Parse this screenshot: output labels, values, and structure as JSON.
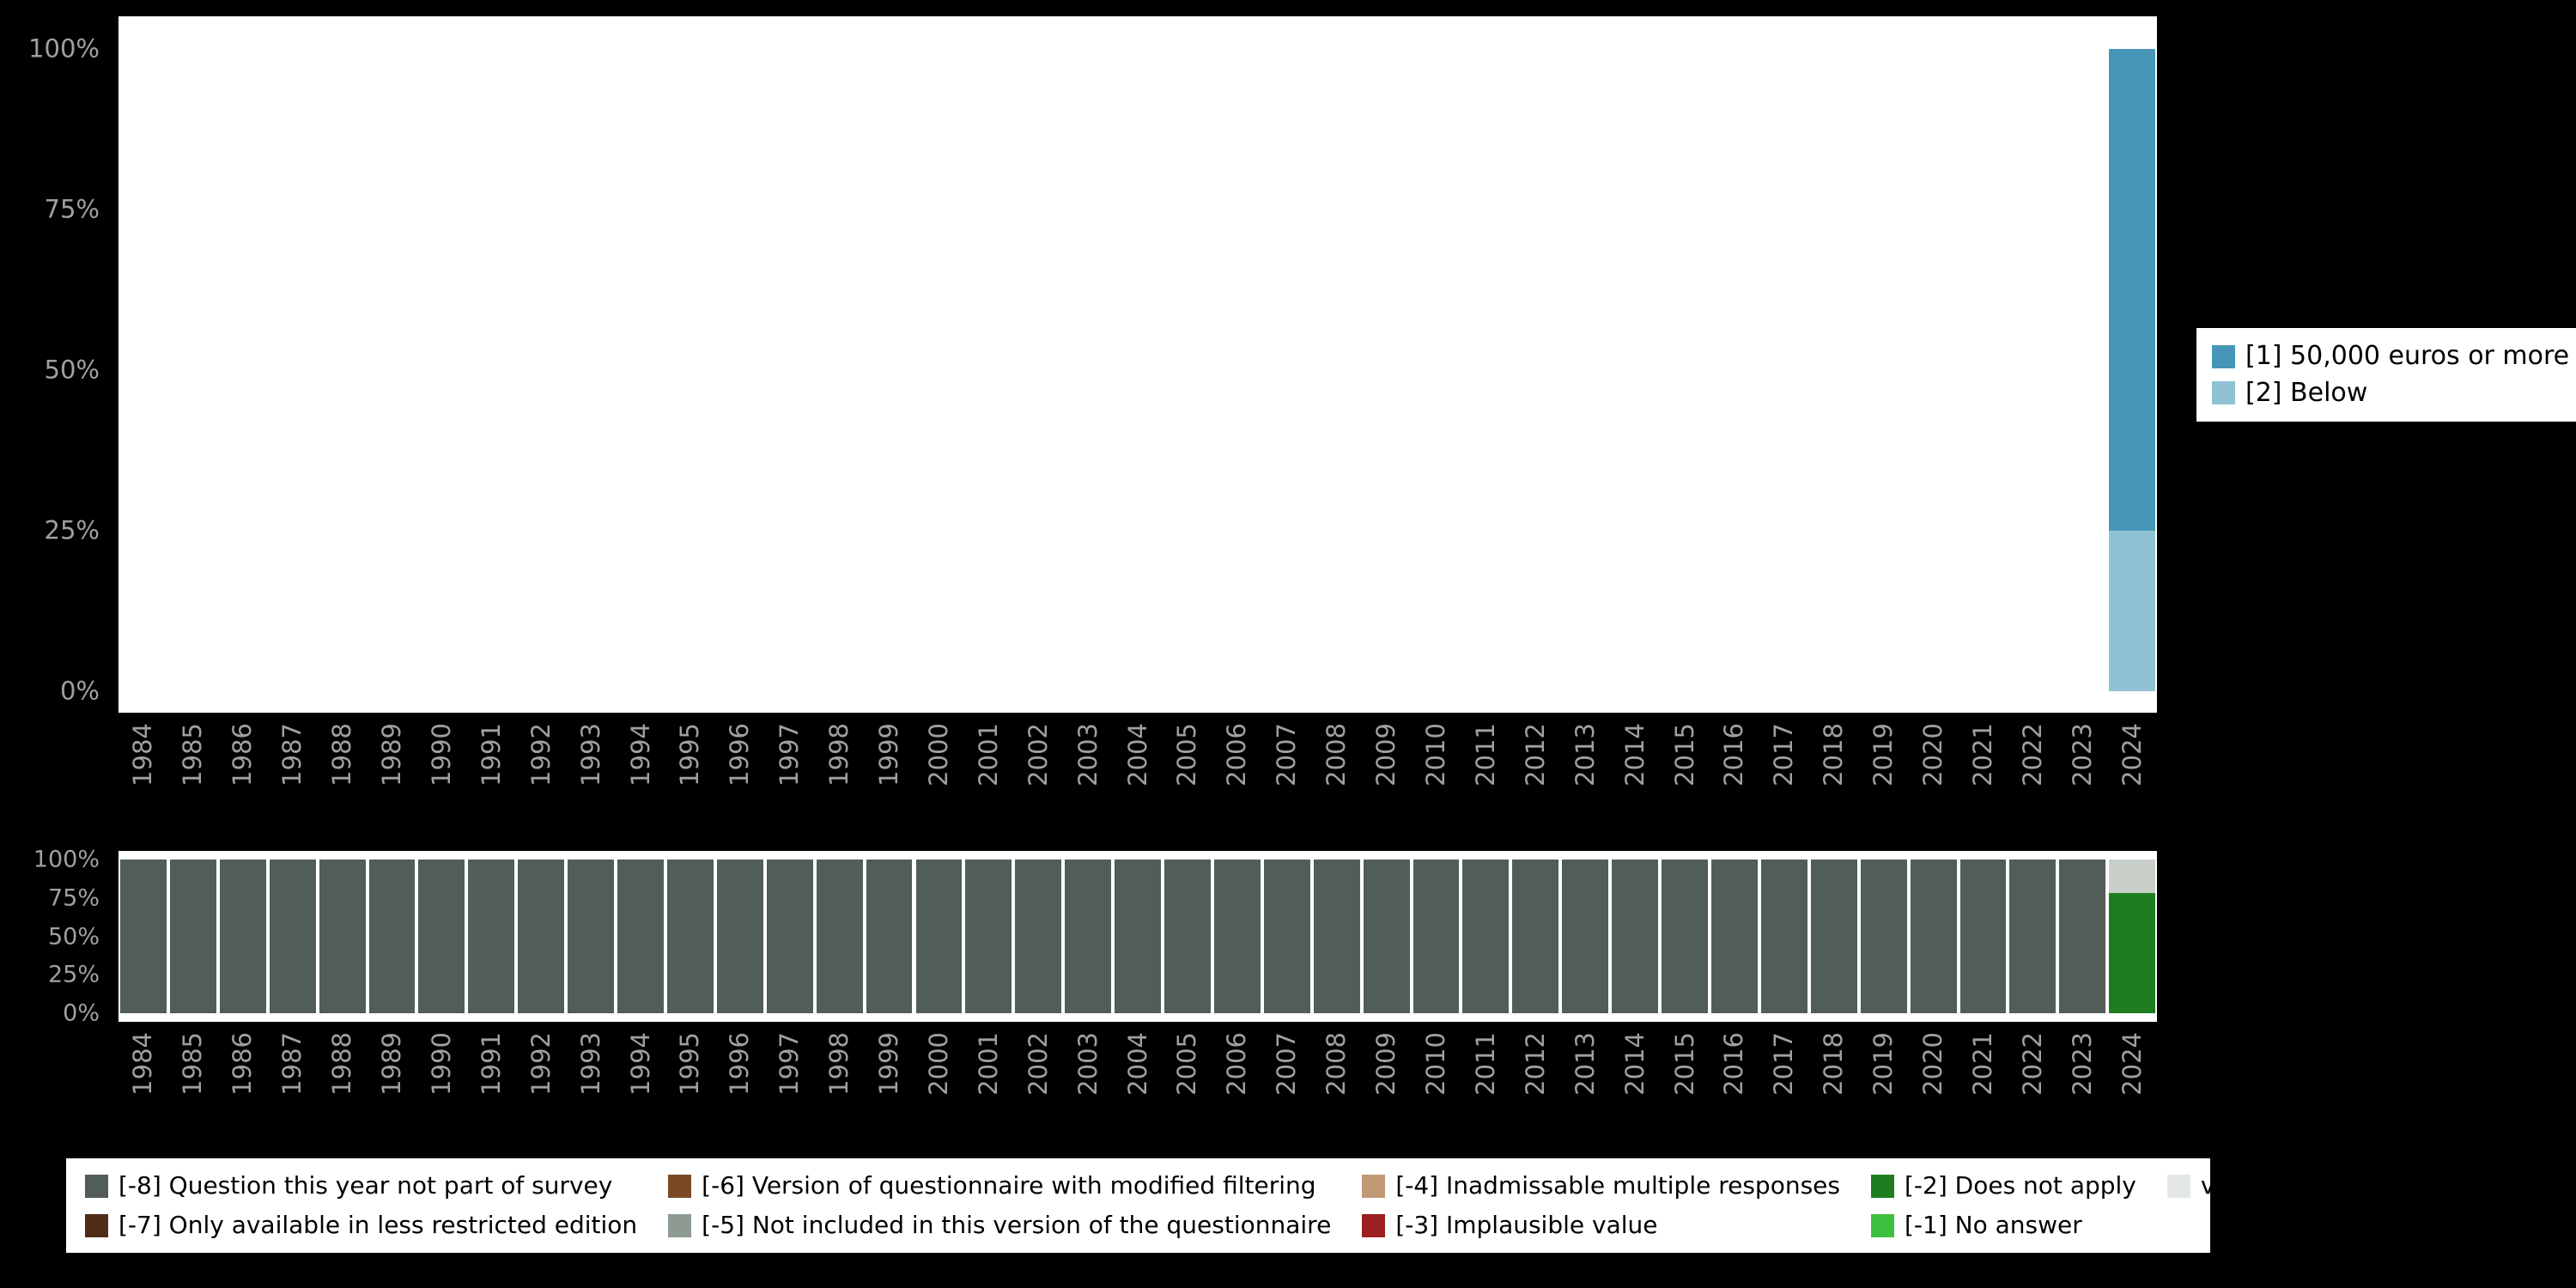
{
  "background_color": "#000000",
  "axis_text_color": "#a0a0a0",
  "chart_data": [
    {
      "type": "bar",
      "stacked": true,
      "percent": true,
      "title": "",
      "xlabel": "",
      "ylabel": "",
      "ylim": [
        0,
        100
      ],
      "grid": false,
      "legend_position": "right",
      "categories": [
        "1984",
        "1985",
        "1986",
        "1987",
        "1988",
        "1989",
        "1990",
        "1991",
        "1992",
        "1993",
        "1994",
        "1995",
        "1996",
        "1997",
        "1998",
        "1999",
        "2000",
        "2001",
        "2002",
        "2003",
        "2004",
        "2005",
        "2006",
        "2007",
        "2008",
        "2009",
        "2010",
        "2011",
        "2012",
        "2013",
        "2014",
        "2015",
        "2016",
        "2017",
        "2018",
        "2019",
        "2020",
        "2021",
        "2022",
        "2023",
        "2024"
      ],
      "yticks": [
        {
          "value": 100,
          "label": "100%"
        },
        {
          "value": 75,
          "label": "75%"
        },
        {
          "value": 50,
          "label": "50%"
        },
        {
          "value": 25,
          "label": "25%"
        },
        {
          "value": 0,
          "label": "0%"
        }
      ],
      "series": [
        {
          "name": "[2] Below",
          "color": "#8fc3d3",
          "values": [
            0,
            0,
            0,
            0,
            0,
            0,
            0,
            0,
            0,
            0,
            0,
            0,
            0,
            0,
            0,
            0,
            0,
            0,
            0,
            0,
            0,
            0,
            0,
            0,
            0,
            0,
            0,
            0,
            0,
            0,
            0,
            0,
            0,
            0,
            0,
            0,
            0,
            0,
            0,
            0,
            25
          ]
        },
        {
          "name": "[1] 50,000 euros or more",
          "color": "#4796b8",
          "values": [
            0,
            0,
            0,
            0,
            0,
            0,
            0,
            0,
            0,
            0,
            0,
            0,
            0,
            0,
            0,
            0,
            0,
            0,
            0,
            0,
            0,
            0,
            0,
            0,
            0,
            0,
            0,
            0,
            0,
            0,
            0,
            0,
            0,
            0,
            0,
            0,
            0,
            0,
            0,
            0,
            75
          ]
        }
      ]
    },
    {
      "type": "bar",
      "stacked": true,
      "percent": true,
      "title": "",
      "xlabel": "",
      "ylabel": "",
      "ylim": [
        0,
        100
      ],
      "grid": false,
      "legend_position": "bottom",
      "categories": [
        "1984",
        "1985",
        "1986",
        "1987",
        "1988",
        "1989",
        "1990",
        "1991",
        "1992",
        "1993",
        "1994",
        "1995",
        "1996",
        "1997",
        "1998",
        "1999",
        "2000",
        "2001",
        "2002",
        "2003",
        "2004",
        "2005",
        "2006",
        "2007",
        "2008",
        "2009",
        "2010",
        "2011",
        "2012",
        "2013",
        "2014",
        "2015",
        "2016",
        "2017",
        "2018",
        "2019",
        "2020",
        "2021",
        "2022",
        "2023",
        "2024"
      ],
      "yticks": [
        {
          "value": 100,
          "label": "100%"
        },
        {
          "value": 75,
          "label": "75%"
        },
        {
          "value": 50,
          "label": "50%"
        },
        {
          "value": 25,
          "label": "25%"
        },
        {
          "value": 0,
          "label": "0%"
        }
      ],
      "series": [
        {
          "name": "[-2] Does not apply",
          "color": "#1f7d1f",
          "values": [
            0,
            0,
            0,
            0,
            0,
            0,
            0,
            0,
            0,
            0,
            0,
            0,
            0,
            0,
            0,
            0,
            0,
            0,
            0,
            0,
            0,
            0,
            0,
            0,
            0,
            0,
            0,
            0,
            0,
            0,
            0,
            0,
            0,
            0,
            0,
            0,
            0,
            0,
            0,
            0,
            78
          ]
        },
        {
          "name": "valid cases",
          "color": "#c9cfc9",
          "values": [
            0,
            0,
            0,
            0,
            0,
            0,
            0,
            0,
            0,
            0,
            0,
            0,
            0,
            0,
            0,
            0,
            0,
            0,
            0,
            0,
            0,
            0,
            0,
            0,
            0,
            0,
            0,
            0,
            0,
            0,
            0,
            0,
            0,
            0,
            0,
            0,
            0,
            0,
            0,
            0,
            22
          ]
        },
        {
          "name": "[-8] Question this year not part of survey",
          "color": "#515d56",
          "values": [
            100,
            100,
            100,
            100,
            100,
            100,
            100,
            100,
            100,
            100,
            100,
            100,
            100,
            100,
            100,
            100,
            100,
            100,
            100,
            100,
            100,
            100,
            100,
            100,
            100,
            100,
            100,
            100,
            100,
            100,
            100,
            100,
            100,
            100,
            100,
            100,
            100,
            100,
            100,
            100,
            0
          ]
        }
      ]
    }
  ],
  "legend_values": {
    "items": [
      {
        "label": "[1] 50,000 euros or more",
        "color": "#4796b8"
      },
      {
        "label": "[2] Below",
        "color": "#8fc3d3"
      }
    ]
  },
  "legend_missings": {
    "items": [
      {
        "label": "[-8] Question this year not part of survey",
        "color": "#515d56"
      },
      {
        "label": "[-7] Only available in less restricted edition",
        "color": "#4f2d18"
      },
      {
        "label": "[-6] Version of questionnaire with modified filtering",
        "color": "#7b4a24"
      },
      {
        "label": "[-5] Not included in this version of the questionnaire",
        "color": "#8e9b90"
      },
      {
        "label": "[-4] Inadmissable multiple responses",
        "color": "#bf9a75"
      },
      {
        "label": "[-3] Implausible value",
        "color": "#9b1f1f"
      },
      {
        "label": "[-2] Does not apply",
        "color": "#1f7d1f"
      },
      {
        "label": "[-1] No answer",
        "color": "#3fbf3f"
      },
      {
        "label": "valid cases",
        "color": "#e4e8e4"
      }
    ]
  }
}
